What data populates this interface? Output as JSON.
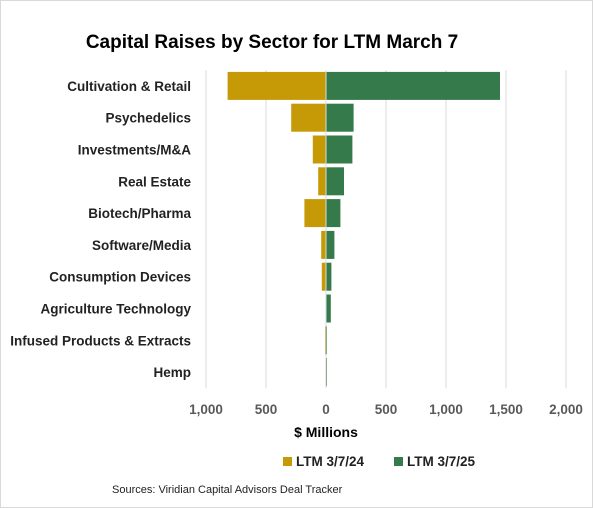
{
  "chart_data": {
    "type": "bar",
    "orientation": "horizontal-diverging",
    "title": "Capital Raises by Sector for LTM March 7",
    "xlabel": "$ Millions",
    "ylabel": "",
    "categories": [
      "Cultivation & Retail",
      "Psychedelics",
      "Investments/M&A",
      "Real Estate",
      "Biotech/Pharma",
      "Software/Media",
      "Consumption Devices",
      "Agriculture Technology",
      "Infused Products & Extracts",
      "Hemp"
    ],
    "series": [
      {
        "name": "LTM 3/7/24",
        "color": "#c59a06",
        "direction": "left",
        "values": [
          820,
          290,
          110,
          65,
          180,
          40,
          35,
          0,
          8,
          3
        ]
      },
      {
        "name": "LTM 3/7/25",
        "color": "#357a4a",
        "direction": "right",
        "values": [
          1450,
          230,
          220,
          150,
          120,
          70,
          45,
          40,
          5,
          2
        ]
      }
    ],
    "xlim": [
      -1000,
      2000
    ],
    "ticks": [
      {
        "value": -1000,
        "label": "1,000"
      },
      {
        "value": -500,
        "label": "500"
      },
      {
        "value": 0,
        "label": "0"
      },
      {
        "value": 500,
        "label": "500"
      },
      {
        "value": 1000,
        "label": "1,000"
      },
      {
        "value": 1500,
        "label": "1,500"
      },
      {
        "value": 2000,
        "label": "2,000"
      }
    ],
    "grid": true,
    "legend_position": "bottom",
    "source": "Sources: Viridian Capital Advisors Deal Tracker"
  }
}
